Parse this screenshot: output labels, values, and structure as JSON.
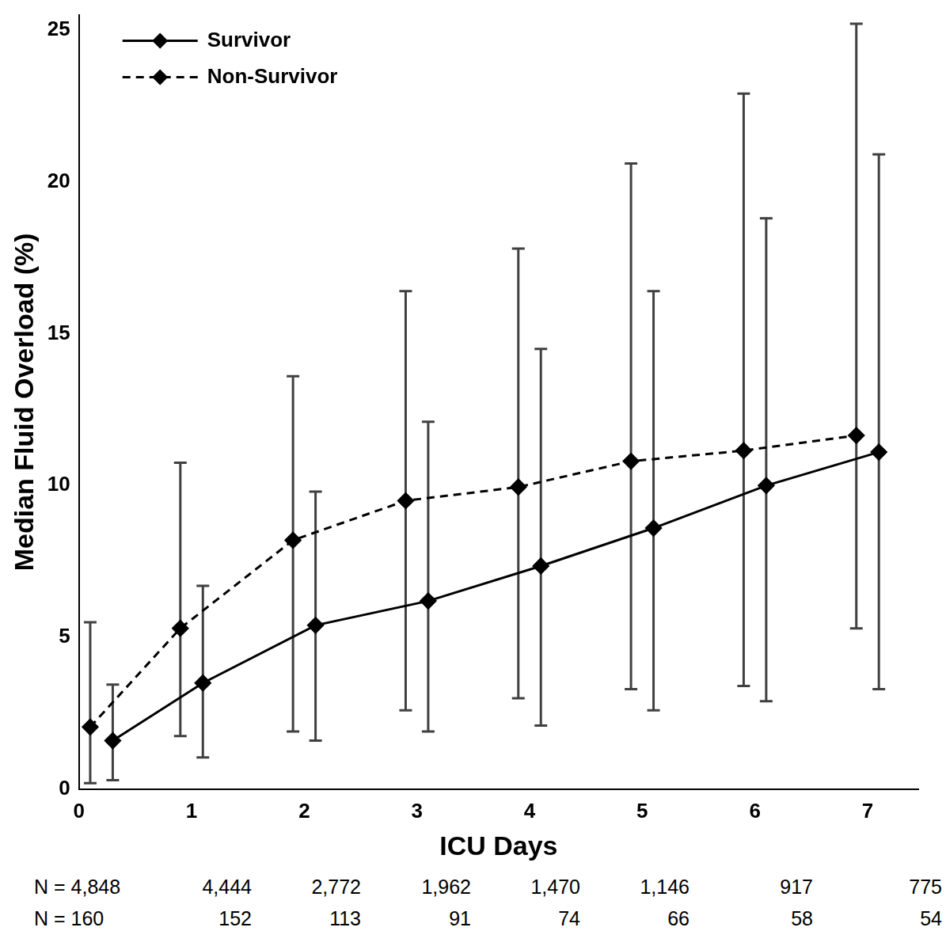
{
  "chart_data": {
    "type": "line",
    "x_label": "ICU Days",
    "y_label": "Median Fluid Overload (%)",
    "xlim": [
      0,
      7.45
    ],
    "xticks": [
      0,
      1,
      2,
      3,
      4,
      5,
      6,
      7
    ],
    "ylim": [
      0,
      25.5
    ],
    "yticks": [
      0,
      5,
      10,
      15,
      20,
      25
    ],
    "grid": false,
    "legend": "upper left",
    "series": [
      {
        "name": "Survivor",
        "color": "#000000",
        "line_style": "solid",
        "marker": "diamond",
        "x": [
          0.3,
          1.1,
          2.1,
          3.1,
          4.1,
          5.1,
          6.1,
          7.1
        ],
        "values": [
          1.6,
          3.5,
          5.4,
          6.2,
          7.35,
          8.6,
          10.0,
          11.1
        ],
        "error_low": [
          0.3,
          1.05,
          1.6,
          1.9,
          2.1,
          2.6,
          2.9,
          3.3
        ],
        "error_high": [
          3.45,
          6.7,
          9.8,
          12.1,
          14.5,
          16.4,
          18.8,
          20.9
        ]
      },
      {
        "name": "Non-Survivor",
        "color": "#000000",
        "line_style": "dashed",
        "marker": "diamond",
        "x": [
          0.1,
          0.9,
          1.9,
          2.9,
          3.9,
          4.9,
          5.9,
          6.9
        ],
        "values": [
          2.05,
          5.3,
          8.2,
          9.5,
          9.95,
          10.8,
          11.15,
          11.65
        ],
        "error_low": [
          0.2,
          1.75,
          1.9,
          2.6,
          3.0,
          3.3,
          3.4,
          5.3
        ],
        "error_high": [
          5.5,
          10.75,
          13.6,
          16.4,
          17.8,
          20.6,
          22.9,
          25.2
        ]
      }
    ],
    "n_rows": [
      [
        "N = 4,848",
        "4,444",
        "2,772",
        "1,962",
        "1,470",
        "1,146",
        "917",
        "775"
      ],
      [
        "N = 160",
        "152",
        "113",
        "91",
        "74",
        "66",
        "58",
        "54"
      ]
    ]
  }
}
